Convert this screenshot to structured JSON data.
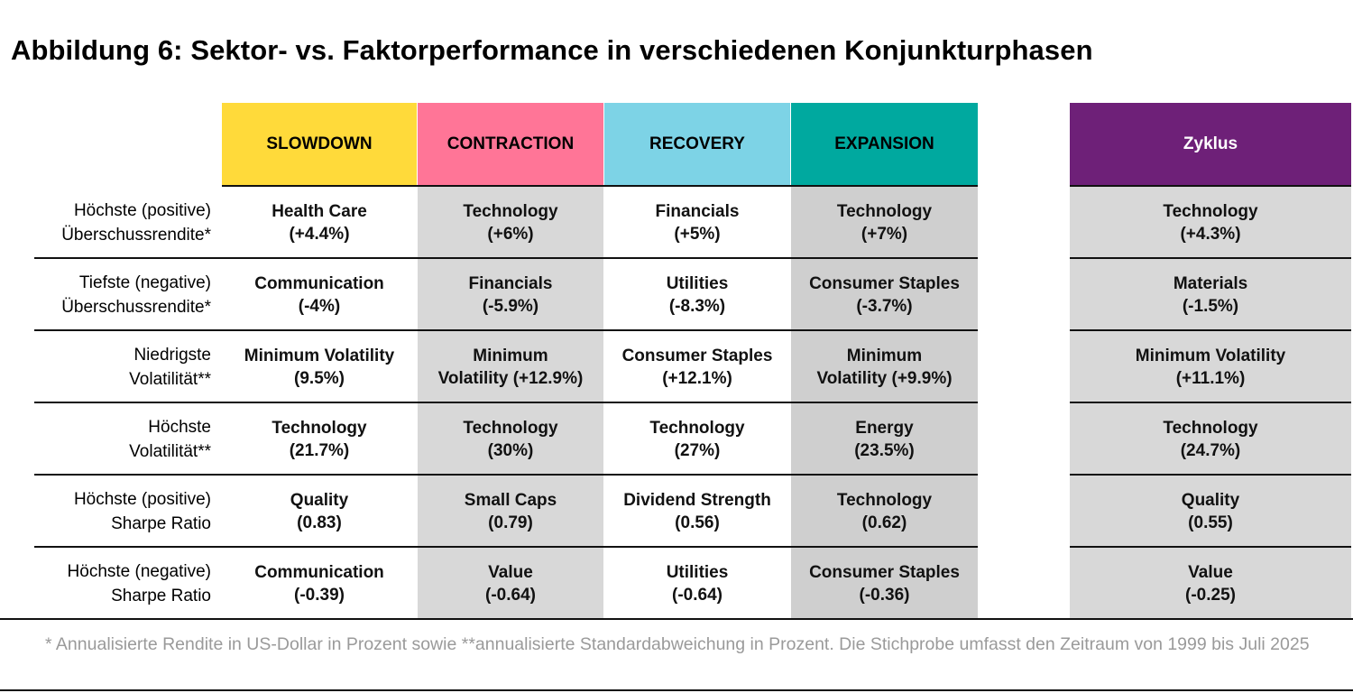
{
  "title": "Abbildung 6: Sektor- vs. Faktorperformance in verschiedenen Konjunkturphasen",
  "colors": {
    "slowdown": "#FFDA3A",
    "contraction": "#FF7597",
    "recovery": "#7DD3E6",
    "expansion": "#00A99F",
    "zyklus": "#6E2078",
    "shade_light": "#D8D8D8",
    "shade_dark": "#CFCFCF"
  },
  "columns": [
    {
      "label": "SLOWDOWN"
    },
    {
      "label": "CONTRACTION"
    },
    {
      "label": "RECOVERY"
    },
    {
      "label": "EXPANSION"
    },
    {
      "label": "Zyklus"
    }
  ],
  "rows": [
    {
      "label": [
        "Höchste (positive)",
        "Überschussrendite*"
      ],
      "cells": [
        [
          "Health Care",
          "(+4.4%)"
        ],
        [
          "Technology",
          "(+6%)"
        ],
        [
          "Financials",
          "(+5%)"
        ],
        [
          "Technology",
          "(+7%)"
        ],
        [
          "Technology",
          "(+4.3%)"
        ]
      ]
    },
    {
      "label": [
        "Tiefste (negative)",
        "Überschussrendite*"
      ],
      "cells": [
        [
          "Communication",
          "(-4%)"
        ],
        [
          "Financials",
          "(-5.9%)"
        ],
        [
          "Utilities",
          "(-8.3%)"
        ],
        [
          "Consumer Staples",
          "(-3.7%)"
        ],
        [
          "Materials",
          "(-1.5%)"
        ]
      ]
    },
    {
      "label": [
        "Niedrigste",
        "Volatilität**"
      ],
      "cells": [
        [
          "Minimum Volatility",
          "(9.5%)"
        ],
        [
          "Minimum",
          "Volatility (+12.9%)"
        ],
        [
          "Consumer Staples",
          "(+12.1%)"
        ],
        [
          "Minimum",
          "Volatility (+9.9%)"
        ],
        [
          "Minimum Volatility",
          "(+11.1%)"
        ]
      ]
    },
    {
      "label": [
        "Höchste",
        "Volatilität**"
      ],
      "cells": [
        [
          "Technology",
          "(21.7%)"
        ],
        [
          "Technology",
          "(30%)"
        ],
        [
          "Technology",
          "(27%)"
        ],
        [
          "Energy",
          "(23.5%)"
        ],
        [
          "Technology",
          "(24.7%)"
        ]
      ]
    },
    {
      "label": [
        "Höchste (positive)",
        "Sharpe Ratio"
      ],
      "cells": [
        [
          "Quality",
          "(0.83)"
        ],
        [
          "Small Caps",
          "(0.79)"
        ],
        [
          "Dividend Strength",
          "(0.56)"
        ],
        [
          "Technology",
          "(0.62)"
        ],
        [
          "Quality",
          "(0.55)"
        ]
      ]
    },
    {
      "label": [
        "Höchste (negative)",
        "Sharpe Ratio"
      ],
      "cells": [
        [
          "Communication",
          "(-0.39)"
        ],
        [
          "Value",
          "(-0.64)"
        ],
        [
          "Utilities",
          "(-0.64)"
        ],
        [
          "Consumer Staples",
          "(-0.36)"
        ],
        [
          "Value",
          "(-0.25)"
        ]
      ]
    }
  ],
  "footnote": "* Annualisierte Rendite in US-Dollar in Prozent sowie **annualisierte Standardabweichung in Prozent. Die Stichprobe umfasst den Zeitraum von 1999 bis Juli 2025"
}
